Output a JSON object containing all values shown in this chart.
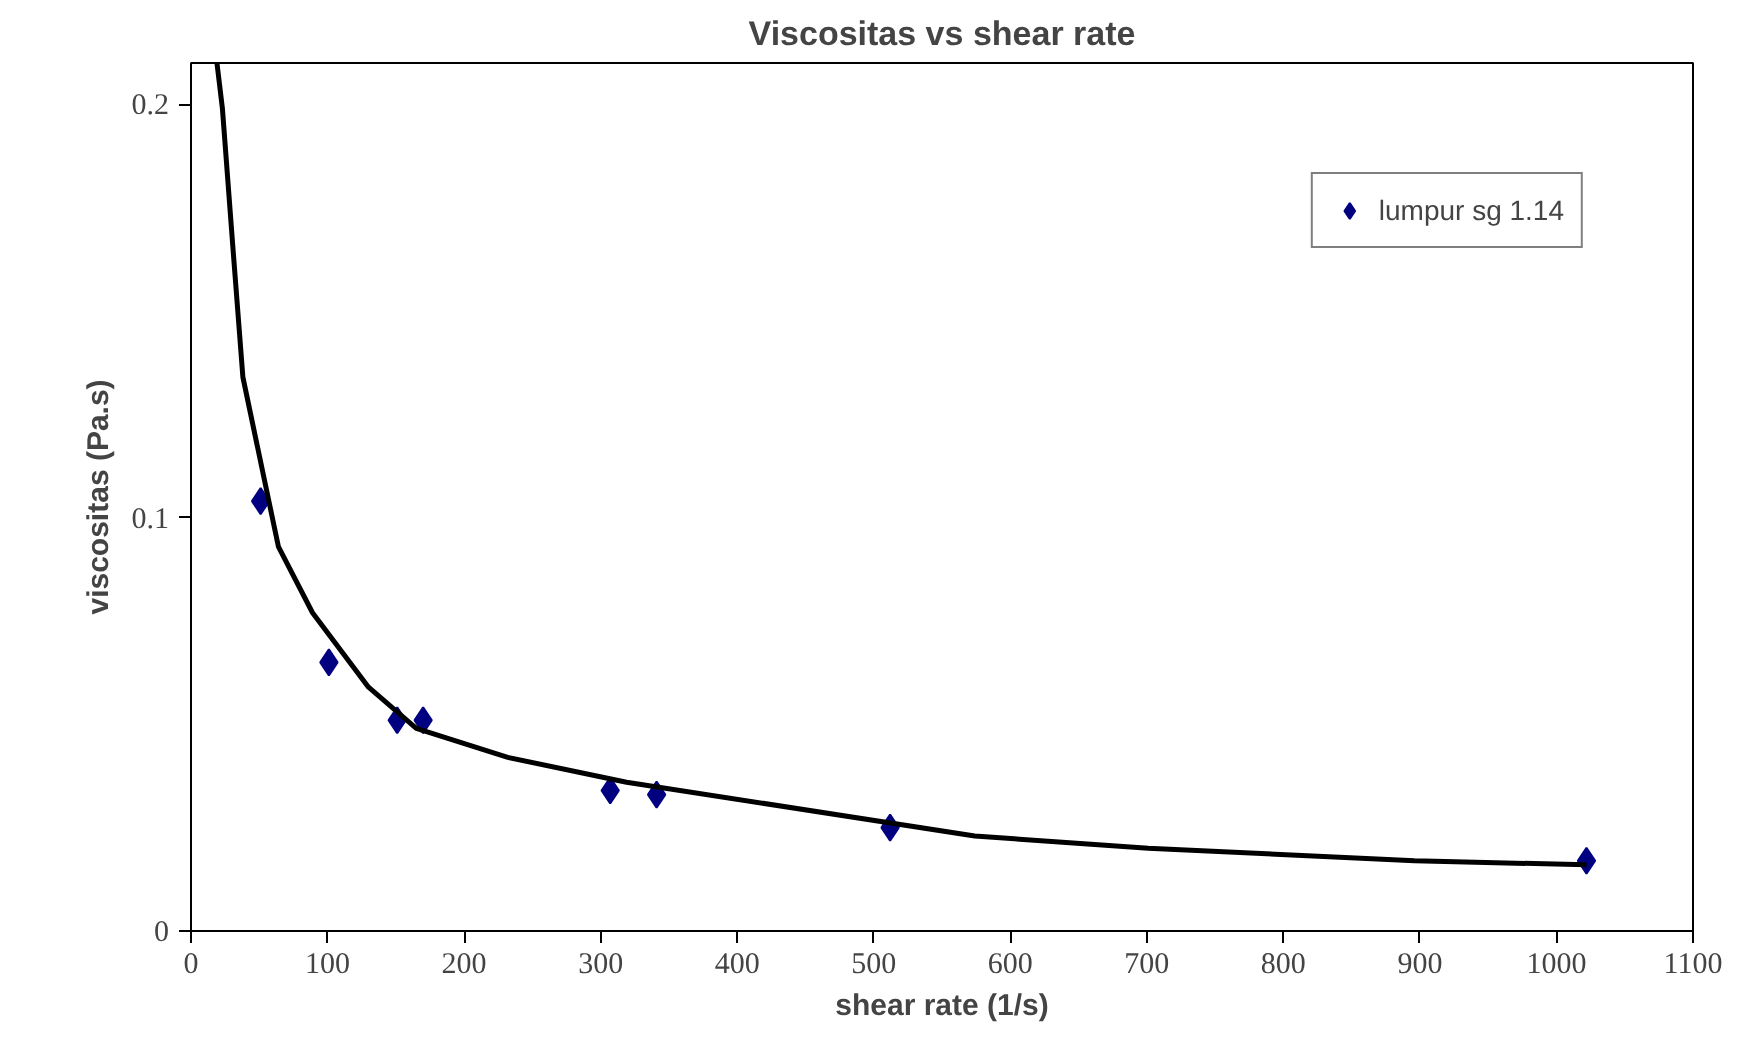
{
  "chart_data": {
    "type": "scatter",
    "title": "Viscositas vs shear rate",
    "xlabel": "shear rate (1/s)",
    "ylabel": "viscositas (Pa.s)",
    "xlim": [
      0,
      1100
    ],
    "xticks": [
      0,
      100,
      200,
      300,
      400,
      500,
      600,
      700,
      800,
      900,
      1000,
      1100
    ],
    "ylim": [
      0,
      0.21
    ],
    "yticks": [
      0,
      0.1,
      0.2
    ],
    "grid": false,
    "legend": "top right",
    "marker": "diamond",
    "series": [
      {
        "name": "lumpur sg 1.14",
        "color": "#000080",
        "x": [
          51,
          101,
          151,
          170,
          307,
          341,
          512,
          1022
        ],
        "values": [
          0.104,
          0.065,
          0.051,
          0.051,
          0.034,
          0.033,
          0.025,
          0.017
        ]
      },
      {
        "type": "line",
        "color": "#000000",
        "marker": "none",
        "x": [
          19,
          23,
          31,
          38,
          64,
          89,
          130,
          165,
          232,
          319,
          574,
          701,
          896,
          1022
        ],
        "values": [
          0.21,
          0.199,
          0.164,
          0.134,
          0.093,
          0.077,
          0.059,
          0.049,
          0.042,
          0.036,
          0.023,
          0.02,
          0.017,
          0.016
        ]
      }
    ]
  }
}
